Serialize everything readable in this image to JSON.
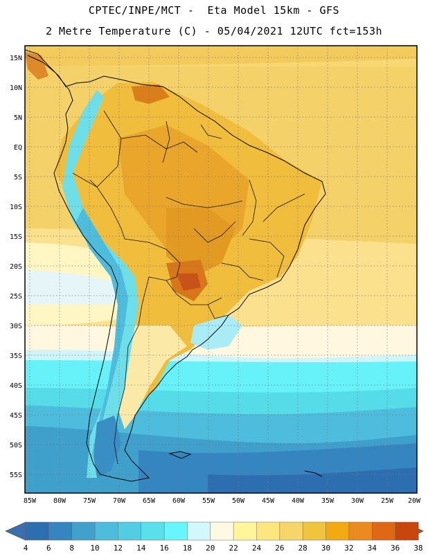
{
  "header": {
    "line1": "CPTEC/INPE/MCT -  Eta Model 15km - GFS",
    "line2": "2 Metre Temperature (C) - 05/04/2021 12UTC fct=153h"
  },
  "map": {
    "lat_labels": [
      "15N",
      "10N",
      "5N",
      "EQ",
      "5S",
      "10S",
      "15S",
      "20S",
      "25S",
      "30S",
      "35S",
      "40S",
      "45S",
      "50S",
      "55S"
    ],
    "lon_labels": [
      "85W",
      "80W",
      "75W",
      "70W",
      "65W",
      "60W",
      "55W",
      "50W",
      "45W",
      "40W",
      "35W",
      "30W",
      "25W",
      "20W"
    ]
  },
  "colorbar": {
    "levels": [
      "4",
      "6",
      "8",
      "10",
      "12",
      "14",
      "16",
      "18",
      "20",
      "22",
      "24",
      "26",
      "28",
      "30",
      "32",
      "34",
      "36",
      "38"
    ],
    "colors": [
      "#2d6eb0",
      "#3585c0",
      "#42a0cd",
      "#4ebcdc",
      "#53cde4",
      "#5ae0ec",
      "#66f6fb",
      "#d2f7fc",
      "#fff8e3",
      "#fff59a",
      "#fde67e",
      "#f7d56a",
      "#f1c43d",
      "#f2a912",
      "#ea8a1f",
      "#df6816",
      "#c9450b"
    ],
    "left_arrow_color": "#3a6fb0",
    "right_arrow_color": "#c14a0e"
  }
}
